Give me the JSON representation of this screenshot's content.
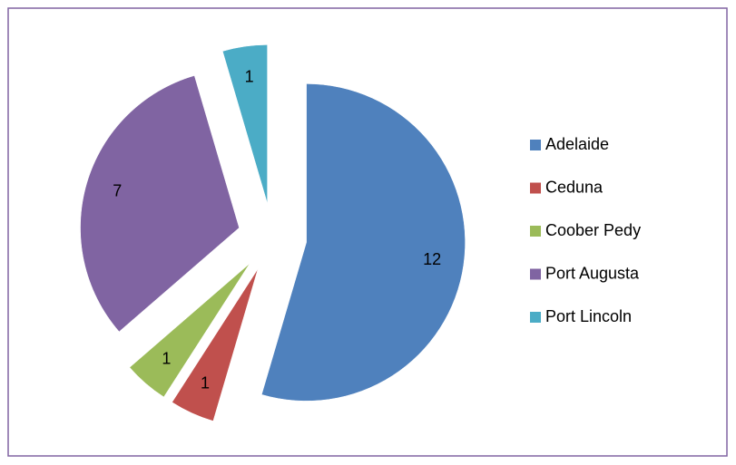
{
  "chart_data": {
    "type": "pie",
    "categories": [
      "Adelaide",
      "Ceduna",
      "Coober Pedy",
      "Port Augusta",
      "Port Lincoln"
    ],
    "values": [
      12,
      1,
      1,
      7,
      1
    ],
    "colors": [
      "#4f81bd",
      "#c0504d",
      "#9bbb59",
      "#8064a2",
      "#4bacc6"
    ],
    "exploded": true,
    "legend": "right"
  }
}
